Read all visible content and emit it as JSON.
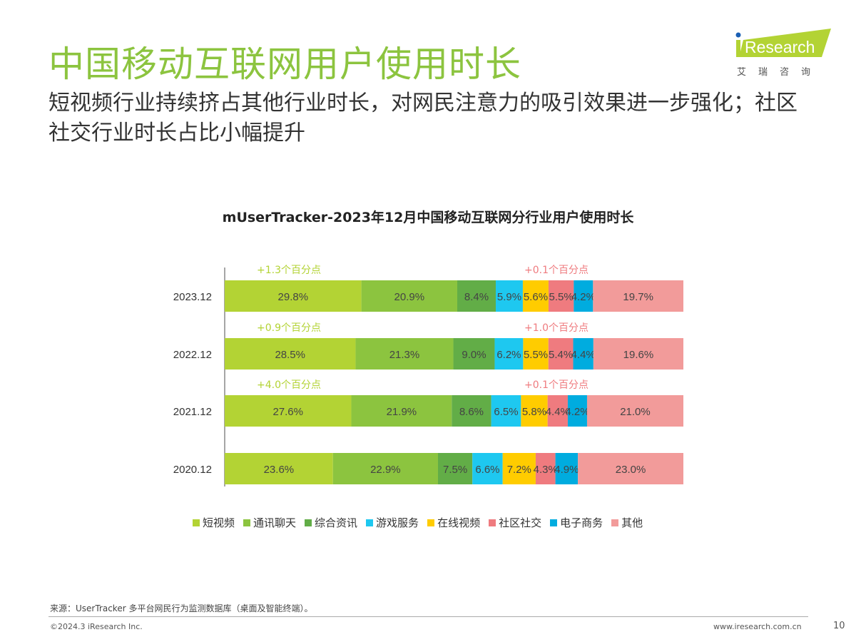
{
  "header": {
    "title": "中国移动互联网用户使用时长",
    "subtitle": "短视频行业持续挤占其他行业时长，对网民注意力的吸引效果进一步强化；社区社交行业时长占比小幅提升",
    "logo_text": "iResearch",
    "logo_cn": "艾瑞咨询"
  },
  "chart_data": {
    "type": "bar",
    "orientation": "horizontal",
    "stacked": true,
    "percent": true,
    "title": "mUserTracker-2023年12月中国移动互联网分行业用户使用时长",
    "categories": [
      "2023.12",
      "2022.12",
      "2021.12",
      "2020.12"
    ],
    "series": [
      {
        "name": "短视频",
        "color": "#b3d334",
        "values": [
          29.8,
          28.5,
          27.6,
          23.6
        ],
        "labels": [
          "29.8%",
          "28.5%",
          "27.6%",
          "23.6%"
        ]
      },
      {
        "name": "通讯聊天",
        "color": "#8cc43f",
        "values": [
          20.9,
          21.3,
          21.9,
          22.9
        ],
        "labels": [
          "20.9%",
          "21.3%",
          "21.9%",
          "22.9%"
        ]
      },
      {
        "name": "综合资讯",
        "color": "#62ad47",
        "values": [
          8.4,
          9.0,
          8.6,
          7.5
        ],
        "labels": [
          "8.4%",
          "9.0%",
          "8.6%",
          "7.5%"
        ]
      },
      {
        "name": "游戏服务",
        "color": "#1ec8f0",
        "values": [
          5.9,
          6.2,
          6.5,
          6.6
        ],
        "labels": [
          "5.9%",
          "6.2%",
          "6.5%",
          "6.6%"
        ]
      },
      {
        "name": "在线视频",
        "color": "#ffcc00",
        "values": [
          5.6,
          5.5,
          5.8,
          7.2
        ],
        "labels": [
          "5.6%",
          "5.5%",
          "5.8%",
          "7.2%"
        ]
      },
      {
        "name": "社区社交",
        "color": "#ef7b7f",
        "values": [
          5.5,
          5.4,
          4.4,
          4.3
        ],
        "labels": [
          "5.5%",
          "5.4%",
          "4.4%",
          "4.3%"
        ]
      },
      {
        "name": "电子商务",
        "color": "#00acdf",
        "values": [
          4.2,
          4.4,
          4.2,
          4.9
        ],
        "labels": [
          "4.2%",
          "4.4%",
          "4.2%",
          "4.9%"
        ]
      },
      {
        "name": "其他",
        "color": "#f29b9a",
        "values": [
          19.7,
          19.6,
          21.0,
          23.0
        ],
        "labels": [
          "19.7%",
          "19.6%",
          "21.0%",
          "23.0%"
        ]
      }
    ],
    "annotations": [
      {
        "category": "2023.12",
        "series": "短视频",
        "text": "+1.3个百分点",
        "color": "#b3d334"
      },
      {
        "category": "2023.12",
        "series": "社区社交",
        "text": "+0.1个百分点",
        "color": "#ef7b7f"
      },
      {
        "category": "2022.12",
        "series": "短视频",
        "text": "+0.9个百分点",
        "color": "#b3d334"
      },
      {
        "category": "2022.12",
        "series": "社区社交",
        "text": "+1.0个百分点",
        "color": "#ef7b7f"
      },
      {
        "category": "2021.12",
        "series": "短视频",
        "text": "+4.0个百分点",
        "color": "#b3d334"
      },
      {
        "category": "2021.12",
        "series": "社区社交",
        "text": "+0.1个百分点",
        "color": "#ef7b7f"
      }
    ],
    "legend_position": "bottom",
    "grid": false
  },
  "footer": {
    "source": "来源：UserTracker 多平台网民行为监测数据库（桌面及智能终端）。",
    "copyright": "©2024.3 iResearch Inc.",
    "url": "www.iresearch.com.cn",
    "page": "10"
  }
}
